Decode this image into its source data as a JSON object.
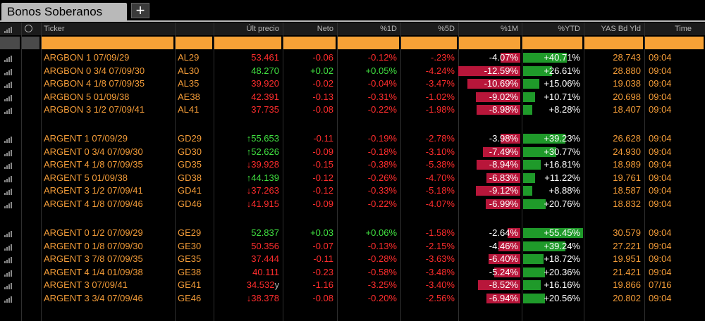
{
  "tab": {
    "title": "Bonos Soberanos",
    "add_label": "+"
  },
  "columns": {
    "ticker": "Ticker",
    "ult_precio": "Últ precio",
    "neto": "Neto",
    "pct1d": "%1D",
    "pct5d": "%5D",
    "pct1m": "%1M",
    "pctytd": "%YTD",
    "yas_bd_yld": "YAS Bd Yld",
    "time": "Time"
  },
  "colors": {
    "accent": "#f29b38",
    "negative": "#ff2d2d",
    "positive": "#40e040",
    "bar_red": "#b8163a",
    "bar_green": "#1f9a2a"
  },
  "groups": [
    {
      "rows": [
        {
          "name": "ARGBON 1 07/09/29",
          "code": "AL29",
          "price": "53.461",
          "price_dir": "neg",
          "price_arrow": "",
          "price_suffix": "",
          "neto": "-0.06",
          "d1": "-0.12%",
          "d5": "-.23%",
          "m1": "-4.07%",
          "m1_bar": 0.32,
          "ytd": "+40.71%",
          "ytd_bar": 0.52,
          "yld": "28.743",
          "time": "09:04"
        },
        {
          "name": "ARGBON 0 3/4 07/09/30",
          "code": "AL30",
          "price": "48.270",
          "price_dir": "pos",
          "price_arrow": "",
          "price_suffix": "",
          "neto": "+0.02",
          "d1": "+0.05%",
          "d5": "-4.24%",
          "m1": "-12.59%",
          "m1_bar": 1.0,
          "ytd": "+26.61%",
          "ytd_bar": 0.34,
          "yld": "28.880",
          "time": "09:04"
        },
        {
          "name": "ARGBON 4 1/8 07/09/35",
          "code": "AL35",
          "price": "39.920",
          "price_dir": "neg",
          "price_arrow": "",
          "price_suffix": "",
          "neto": "-0.02",
          "d1": "-0.04%",
          "d5": "-3.47%",
          "m1": "-10.69%",
          "m1_bar": 0.85,
          "ytd": "+15.06%",
          "ytd_bar": 0.19,
          "yld": "19.038",
          "time": "09:04"
        },
        {
          "name": "ARGBON 5 01/09/38",
          "code": "AE38",
          "price": "42.391",
          "price_dir": "neg",
          "price_arrow": "",
          "price_suffix": "",
          "neto": "-0.13",
          "d1": "-0.31%",
          "d5": "-1.02%",
          "m1": "-9.02%",
          "m1_bar": 0.72,
          "ytd": "+10.71%",
          "ytd_bar": 0.14,
          "yld": "20.698",
          "time": "09:04"
        },
        {
          "name": "ARGBON 3 1/2 07/09/41",
          "code": "AL41",
          "price": "37.735",
          "price_dir": "neg",
          "price_arrow": "",
          "price_suffix": "",
          "neto": "-0.08",
          "d1": "-0.22%",
          "d5": "-1.98%",
          "m1": "-8.98%",
          "m1_bar": 0.71,
          "ytd": "+8.28%",
          "ytd_bar": 0.11,
          "yld": "18.407",
          "time": "09:04"
        }
      ]
    },
    {
      "rows": [
        {
          "name": "ARGENT 1 07/09/29",
          "code": "GD29",
          "price": "55.653",
          "price_dir": "pos",
          "price_arrow": "↑",
          "price_suffix": "",
          "neto": "-0.11",
          "d1": "-0.19%",
          "d5": "-2.78%",
          "m1": "-3.98%",
          "m1_bar": 0.32,
          "ytd": "+39.23%",
          "ytd_bar": 0.5,
          "yld": "26.628",
          "time": "09:04"
        },
        {
          "name": "ARGENT 0 3/4 07/09/30",
          "code": "GD30",
          "price": "52.626",
          "price_dir": "pos",
          "price_arrow": "↑",
          "price_suffix": "",
          "neto": "-0.09",
          "d1": "-0.18%",
          "d5": "-3.10%",
          "m1": "-7.49%",
          "m1_bar": 0.6,
          "ytd": "+30.77%",
          "ytd_bar": 0.39,
          "yld": "24.930",
          "time": "09:04"
        },
        {
          "name": "ARGENT 4 1/8 07/09/35",
          "code": "GD35",
          "price": "39.928",
          "price_dir": "neg",
          "price_arrow": "↓",
          "price_suffix": "",
          "neto": "-0.15",
          "d1": "-0.38%",
          "d5": "-5.38%",
          "m1": "-8.94%",
          "m1_bar": 0.71,
          "ytd": "+16.81%",
          "ytd_bar": 0.21,
          "yld": "18.989",
          "time": "09:04"
        },
        {
          "name": "ARGENT 5 01/09/38",
          "code": "GD38",
          "price": "44.139",
          "price_dir": "pos",
          "price_arrow": "↑",
          "price_suffix": "",
          "neto": "-0.12",
          "d1": "-0.26%",
          "d5": "-4.70%",
          "m1": "-6.83%",
          "m1_bar": 0.54,
          "ytd": "+11.22%",
          "ytd_bar": 0.14,
          "yld": "19.761",
          "time": "09:04"
        },
        {
          "name": "ARGENT 3 1/2 07/09/41",
          "code": "GD41",
          "price": "37.263",
          "price_dir": "neg",
          "price_arrow": "↓",
          "price_suffix": "",
          "neto": "-0.12",
          "d1": "-0.33%",
          "d5": "-5.18%",
          "m1": "-9.12%",
          "m1_bar": 0.72,
          "ytd": "+8.88%",
          "ytd_bar": 0.11,
          "yld": "18.587",
          "time": "09:04"
        },
        {
          "name": "ARGENT 4 1/8 07/09/46",
          "code": "GD46",
          "price": "41.915",
          "price_dir": "neg",
          "price_arrow": "↓",
          "price_suffix": "",
          "neto": "-0.09",
          "d1": "-0.22%",
          "d5": "-4.07%",
          "m1": "-6.99%",
          "m1_bar": 0.56,
          "ytd": "+20.76%",
          "ytd_bar": 0.27,
          "yld": "18.832",
          "time": "09:04"
        }
      ]
    },
    {
      "rows": [
        {
          "name": "ARGENT 0 1/2 07/09/29",
          "code": "GE29",
          "price": "52.837",
          "price_dir": "pos",
          "price_arrow": "",
          "price_suffix": "",
          "neto": "+0.03",
          "d1": "+0.06%",
          "d5": "-1.58%",
          "m1": "-2.64%",
          "m1_bar": 0.21,
          "ytd": "+55.45%",
          "ytd_bar": 0.71,
          "yld": "30.579",
          "time": "09:04"
        },
        {
          "name": "ARGENT 0 1/8 07/09/30",
          "code": "GE30",
          "price": "50.356",
          "price_dir": "neg",
          "price_arrow": "",
          "price_suffix": "",
          "neto": "-0.07",
          "d1": "-0.13%",
          "d5": "-2.15%",
          "m1": "-4.46%",
          "m1_bar": 0.35,
          "ytd": "+39.24%",
          "ytd_bar": 0.5,
          "yld": "27.221",
          "time": "09:04"
        },
        {
          "name": "ARGENT 3 7/8 07/09/35",
          "code": "GE35",
          "price": "37.444",
          "price_dir": "neg",
          "price_arrow": "",
          "price_suffix": "",
          "neto": "-0.11",
          "d1": "-0.28%",
          "d5": "-3.63%",
          "m1": "-6.40%",
          "m1_bar": 0.51,
          "ytd": "+18.72%",
          "ytd_bar": 0.24,
          "yld": "19.951",
          "time": "09:04"
        },
        {
          "name": "ARGENT 4 1/4 01/09/38",
          "code": "GE38",
          "price": "40.111",
          "price_dir": "neg",
          "price_arrow": "",
          "price_suffix": "",
          "neto": "-0.23",
          "d1": "-0.58%",
          "d5": "-3.48%",
          "m1": "-5.24%",
          "m1_bar": 0.42,
          "ytd": "+20.36%",
          "ytd_bar": 0.26,
          "yld": "21.421",
          "time": "09:04"
        },
        {
          "name": "ARGENT 3 07/09/41",
          "code": "GE41",
          "price": "34.532",
          "price_dir": "neg",
          "price_arrow": "",
          "price_suffix": "y",
          "neto": "-1.16",
          "d1": "-3.25%",
          "d5": "-3.40%",
          "m1": "-8.52%",
          "m1_bar": 0.68,
          "ytd": "+16.16%",
          "ytd_bar": 0.21,
          "yld": "19.866",
          "time": "07/16"
        },
        {
          "name": "ARGENT 3 3/4 07/09/46",
          "code": "GE46",
          "price": "38.378",
          "price_dir": "neg",
          "price_arrow": "↓",
          "price_suffix": "",
          "neto": "-0.08",
          "d1": "-0.20%",
          "d5": "-2.56%",
          "m1": "-6.94%",
          "m1_bar": 0.55,
          "ytd": "+20.56%",
          "ytd_bar": 0.26,
          "yld": "20.802",
          "time": "09:04"
        }
      ]
    }
  ]
}
